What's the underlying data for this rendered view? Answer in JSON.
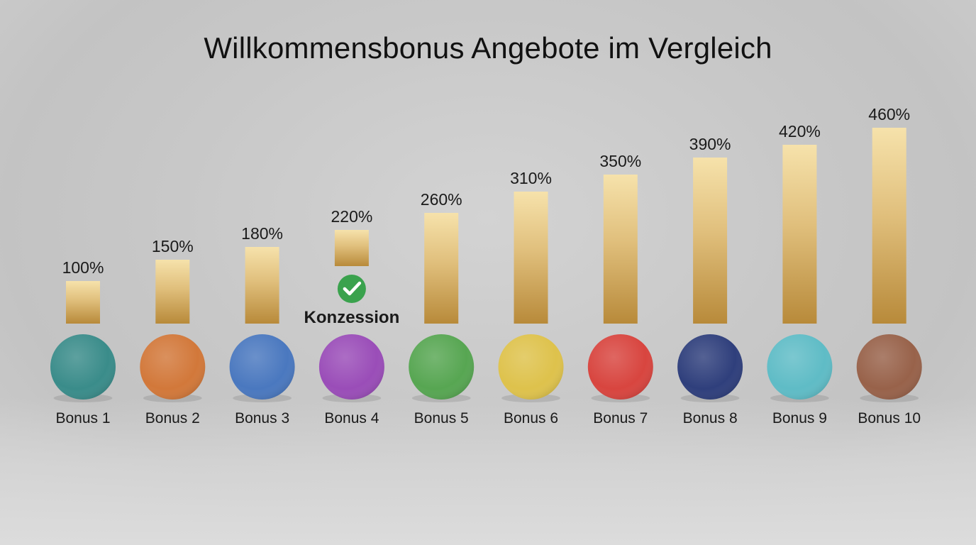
{
  "chart_data": {
    "type": "bar",
    "title": "Willkommensbonus Angebote im Vergleich",
    "xlabel": "",
    "ylabel": "",
    "unit": "%",
    "ylim": [
      0,
      460
    ],
    "grid": false,
    "categories": [
      "Bonus 1",
      "Bonus 2",
      "Bonus 3",
      "Bonus 4",
      "Bonus 5",
      "Bonus 6",
      "Bonus 7",
      "Bonus 8",
      "Bonus 9",
      "Bonus 10"
    ],
    "values": [
      100,
      150,
      180,
      220,
      260,
      310,
      350,
      390,
      420,
      460
    ],
    "value_labels": [
      "100%",
      "150%",
      "180%",
      "220%",
      "260%",
      "310%",
      "350%",
      "390%",
      "420%",
      "460%"
    ],
    "colors": [
      "#3a8c8a",
      "#d2783a",
      "#4a78bf",
      "#9a4db8",
      "#57a652",
      "#dec24c",
      "#d8453f",
      "#2f3f7c",
      "#5fbcc6",
      "#98624a"
    ],
    "bar_color": "#d9b56a",
    "annotation": {
      "category": "Bonus 4",
      "icon": "check-circle-icon",
      "icon_color": "#3aa24d",
      "label": "Konzession"
    }
  }
}
